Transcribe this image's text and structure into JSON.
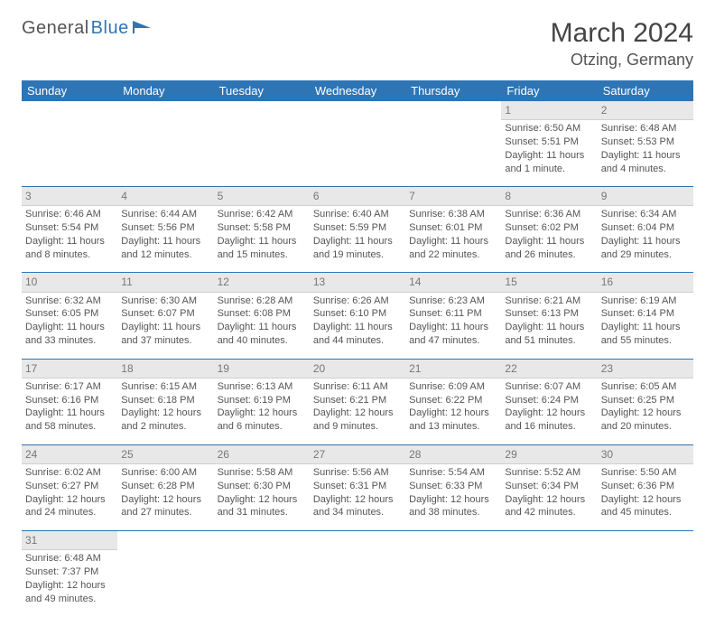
{
  "logo": {
    "text1": "General",
    "text2": "Blue"
  },
  "title": "March 2024",
  "location": "Otzing, Germany",
  "colors": {
    "header_bg": "#2e75b6",
    "header_text": "#ffffff",
    "daynum_bg": "#e8e8e8",
    "daynum_text": "#777777",
    "cell_text": "#555555",
    "row_divider": "#2e75b6",
    "page_bg": "#ffffff"
  },
  "weekday_labels": [
    "Sunday",
    "Monday",
    "Tuesday",
    "Wednesday",
    "Thursday",
    "Friday",
    "Saturday"
  ],
  "weeks": [
    {
      "nums": [
        "",
        "",
        "",
        "",
        "",
        "1",
        "2"
      ],
      "cells": [
        null,
        null,
        null,
        null,
        null,
        {
          "sunrise": "Sunrise: 6:50 AM",
          "sunset": "Sunset: 5:51 PM",
          "day1": "Daylight: 11 hours",
          "day2": "and 1 minute."
        },
        {
          "sunrise": "Sunrise: 6:48 AM",
          "sunset": "Sunset: 5:53 PM",
          "day1": "Daylight: 11 hours",
          "day2": "and 4 minutes."
        }
      ]
    },
    {
      "nums": [
        "3",
        "4",
        "5",
        "6",
        "7",
        "8",
        "9"
      ],
      "cells": [
        {
          "sunrise": "Sunrise: 6:46 AM",
          "sunset": "Sunset: 5:54 PM",
          "day1": "Daylight: 11 hours",
          "day2": "and 8 minutes."
        },
        {
          "sunrise": "Sunrise: 6:44 AM",
          "sunset": "Sunset: 5:56 PM",
          "day1": "Daylight: 11 hours",
          "day2": "and 12 minutes."
        },
        {
          "sunrise": "Sunrise: 6:42 AM",
          "sunset": "Sunset: 5:58 PM",
          "day1": "Daylight: 11 hours",
          "day2": "and 15 minutes."
        },
        {
          "sunrise": "Sunrise: 6:40 AM",
          "sunset": "Sunset: 5:59 PM",
          "day1": "Daylight: 11 hours",
          "day2": "and 19 minutes."
        },
        {
          "sunrise": "Sunrise: 6:38 AM",
          "sunset": "Sunset: 6:01 PM",
          "day1": "Daylight: 11 hours",
          "day2": "and 22 minutes."
        },
        {
          "sunrise": "Sunrise: 6:36 AM",
          "sunset": "Sunset: 6:02 PM",
          "day1": "Daylight: 11 hours",
          "day2": "and 26 minutes."
        },
        {
          "sunrise": "Sunrise: 6:34 AM",
          "sunset": "Sunset: 6:04 PM",
          "day1": "Daylight: 11 hours",
          "day2": "and 29 minutes."
        }
      ]
    },
    {
      "nums": [
        "10",
        "11",
        "12",
        "13",
        "14",
        "15",
        "16"
      ],
      "cells": [
        {
          "sunrise": "Sunrise: 6:32 AM",
          "sunset": "Sunset: 6:05 PM",
          "day1": "Daylight: 11 hours",
          "day2": "and 33 minutes."
        },
        {
          "sunrise": "Sunrise: 6:30 AM",
          "sunset": "Sunset: 6:07 PM",
          "day1": "Daylight: 11 hours",
          "day2": "and 37 minutes."
        },
        {
          "sunrise": "Sunrise: 6:28 AM",
          "sunset": "Sunset: 6:08 PM",
          "day1": "Daylight: 11 hours",
          "day2": "and 40 minutes."
        },
        {
          "sunrise": "Sunrise: 6:26 AM",
          "sunset": "Sunset: 6:10 PM",
          "day1": "Daylight: 11 hours",
          "day2": "and 44 minutes."
        },
        {
          "sunrise": "Sunrise: 6:23 AM",
          "sunset": "Sunset: 6:11 PM",
          "day1": "Daylight: 11 hours",
          "day2": "and 47 minutes."
        },
        {
          "sunrise": "Sunrise: 6:21 AM",
          "sunset": "Sunset: 6:13 PM",
          "day1": "Daylight: 11 hours",
          "day2": "and 51 minutes."
        },
        {
          "sunrise": "Sunrise: 6:19 AM",
          "sunset": "Sunset: 6:14 PM",
          "day1": "Daylight: 11 hours",
          "day2": "and 55 minutes."
        }
      ]
    },
    {
      "nums": [
        "17",
        "18",
        "19",
        "20",
        "21",
        "22",
        "23"
      ],
      "cells": [
        {
          "sunrise": "Sunrise: 6:17 AM",
          "sunset": "Sunset: 6:16 PM",
          "day1": "Daylight: 11 hours",
          "day2": "and 58 minutes."
        },
        {
          "sunrise": "Sunrise: 6:15 AM",
          "sunset": "Sunset: 6:18 PM",
          "day1": "Daylight: 12 hours",
          "day2": "and 2 minutes."
        },
        {
          "sunrise": "Sunrise: 6:13 AM",
          "sunset": "Sunset: 6:19 PM",
          "day1": "Daylight: 12 hours",
          "day2": "and 6 minutes."
        },
        {
          "sunrise": "Sunrise: 6:11 AM",
          "sunset": "Sunset: 6:21 PM",
          "day1": "Daylight: 12 hours",
          "day2": "and 9 minutes."
        },
        {
          "sunrise": "Sunrise: 6:09 AM",
          "sunset": "Sunset: 6:22 PM",
          "day1": "Daylight: 12 hours",
          "day2": "and 13 minutes."
        },
        {
          "sunrise": "Sunrise: 6:07 AM",
          "sunset": "Sunset: 6:24 PM",
          "day1": "Daylight: 12 hours",
          "day2": "and 16 minutes."
        },
        {
          "sunrise": "Sunrise: 6:05 AM",
          "sunset": "Sunset: 6:25 PM",
          "day1": "Daylight: 12 hours",
          "day2": "and 20 minutes."
        }
      ]
    },
    {
      "nums": [
        "24",
        "25",
        "26",
        "27",
        "28",
        "29",
        "30"
      ],
      "cells": [
        {
          "sunrise": "Sunrise: 6:02 AM",
          "sunset": "Sunset: 6:27 PM",
          "day1": "Daylight: 12 hours",
          "day2": "and 24 minutes."
        },
        {
          "sunrise": "Sunrise: 6:00 AM",
          "sunset": "Sunset: 6:28 PM",
          "day1": "Daylight: 12 hours",
          "day2": "and 27 minutes."
        },
        {
          "sunrise": "Sunrise: 5:58 AM",
          "sunset": "Sunset: 6:30 PM",
          "day1": "Daylight: 12 hours",
          "day2": "and 31 minutes."
        },
        {
          "sunrise": "Sunrise: 5:56 AM",
          "sunset": "Sunset: 6:31 PM",
          "day1": "Daylight: 12 hours",
          "day2": "and 34 minutes."
        },
        {
          "sunrise": "Sunrise: 5:54 AM",
          "sunset": "Sunset: 6:33 PM",
          "day1": "Daylight: 12 hours",
          "day2": "and 38 minutes."
        },
        {
          "sunrise": "Sunrise: 5:52 AM",
          "sunset": "Sunset: 6:34 PM",
          "day1": "Daylight: 12 hours",
          "day2": "and 42 minutes."
        },
        {
          "sunrise": "Sunrise: 5:50 AM",
          "sunset": "Sunset: 6:36 PM",
          "day1": "Daylight: 12 hours",
          "day2": "and 45 minutes."
        }
      ]
    },
    {
      "nums": [
        "31",
        "",
        "",
        "",
        "",
        "",
        ""
      ],
      "cells": [
        {
          "sunrise": "Sunrise: 6:48 AM",
          "sunset": "Sunset: 7:37 PM",
          "day1": "Daylight: 12 hours",
          "day2": "and 49 minutes."
        },
        null,
        null,
        null,
        null,
        null,
        null
      ]
    }
  ]
}
